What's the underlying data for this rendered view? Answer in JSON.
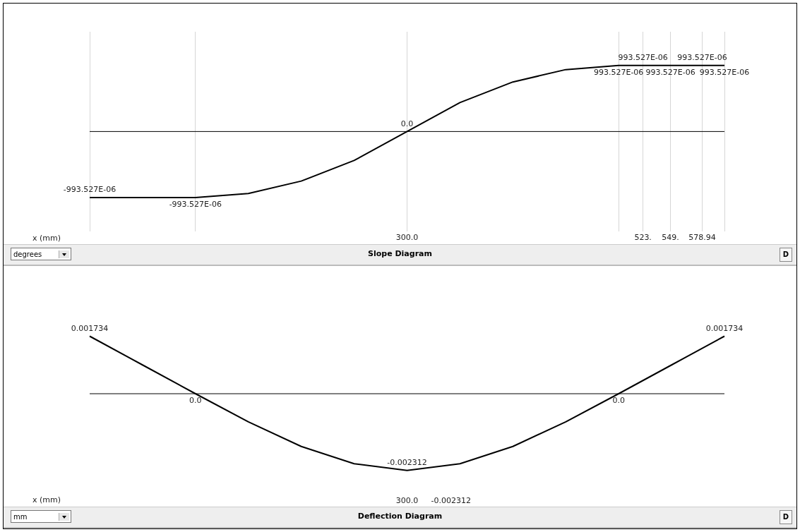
{
  "chart_data": [
    {
      "type": "line",
      "title": "Slope Diagram",
      "xlabel": "x (mm)",
      "xlim": [
        0,
        600
      ],
      "xticks": [
        {
          "value": 0,
          "label": null
        },
        {
          "value": 100,
          "label": null
        },
        {
          "value": 300,
          "label": "300.0"
        },
        {
          "value": 500,
          "label": null
        },
        {
          "value": 523,
          "label": "523."
        },
        {
          "value": 549,
          "label": "549."
        },
        {
          "value": 578.94,
          "label": "578.94"
        },
        {
          "value": 600,
          "label": null
        }
      ],
      "grid": "x",
      "tick_labels": "x",
      "legend": false,
      "marker": "none",
      "line_style": "solid",
      "ref_lines": [
        {
          "axis": "y",
          "value": 0,
          "color": "#000000"
        }
      ],
      "annotations": [
        "degrees",
        "D"
      ],
      "series": [
        {
          "color": "#000000",
          "x": [
            0,
            100,
            150,
            200,
            250,
            300,
            350,
            400,
            450,
            500,
            523,
            549,
            578.94,
            600
          ],
          "values": [
            -0.000993527,
            -0.000993527,
            -0.000931,
            -0.000745,
            -0.000435,
            0,
            0.000435,
            0.000745,
            0.000931,
            0.000993527,
            0.000993527,
            0.000993527,
            0.000993527,
            0.000993527
          ],
          "value_labels": [
            "-993.527E-06",
            "-993.527E-06",
            null,
            null,
            null,
            "0.0",
            null,
            null,
            null,
            "993.527E-06",
            "993.527E-06",
            "993.527E-06",
            "993.527E-06",
            "993.527E-06"
          ]
        }
      ]
    },
    {
      "type": "line",
      "title": "Deflection Diagram",
      "xlabel": "x (mm)",
      "categories": [
        null,
        null,
        null,
        null,
        null,
        null,
        null,
        null,
        null,
        null,
        null,
        null,
        null
      ],
      "tick_labels": false,
      "legend": false,
      "marker": "none",
      "line_style": "solid",
      "ref_lines": [
        {
          "axis": "y",
          "value": 0,
          "color": "#000000"
        }
      ],
      "annotations": [
        "mm",
        "-0.002312",
        {
          "text": "300.0"
        },
        "D"
      ],
      "series": [
        {
          "color": "#000000",
          "values": [
            0.001734,
            0.000867,
            0,
            -0.000849,
            -0.00159,
            -0.002113,
            -0.002312,
            -0.002113,
            -0.00159,
            -0.000849,
            0,
            0.000867,
            0.001734
          ],
          "value_labels": [
            "0.001734",
            null,
            "0.0",
            null,
            null,
            null,
            "-0.002312",
            null,
            null,
            null,
            "0.0",
            null,
            "0.001734"
          ]
        }
      ]
    }
  ]
}
